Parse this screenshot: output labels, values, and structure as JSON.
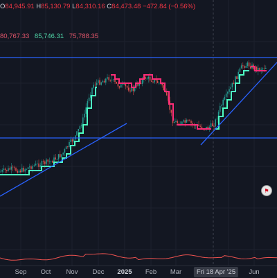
{
  "ohlc": {
    "o_label": "O",
    "o": "84,945.91",
    "h_label": "H",
    "h": "85,130.79",
    "l_label": "L",
    "l": "84,310.16",
    "c_label": "C",
    "c": "84,473.48",
    "change": "−472.84 (−0.56%)"
  },
  "indicator": {
    "v1": "80,767.33",
    "v2": "85,746.31",
    "v3": "75,788.35"
  },
  "xaxis": {
    "ticks": [
      "Sep",
      "Oct",
      "Nov",
      "Dec",
      "2025",
      "Feb",
      "Mar",
      "Jun"
    ],
    "crosshair": "Fri 18 Apr '25"
  },
  "colors": {
    "up": "#26a69a",
    "down": "#ef5350",
    "trend": "#2962ff",
    "up_line": "#4dffc3",
    "down_line": "#ff2d78"
  },
  "icons": {
    "flag": "us-flag-icon"
  }
}
